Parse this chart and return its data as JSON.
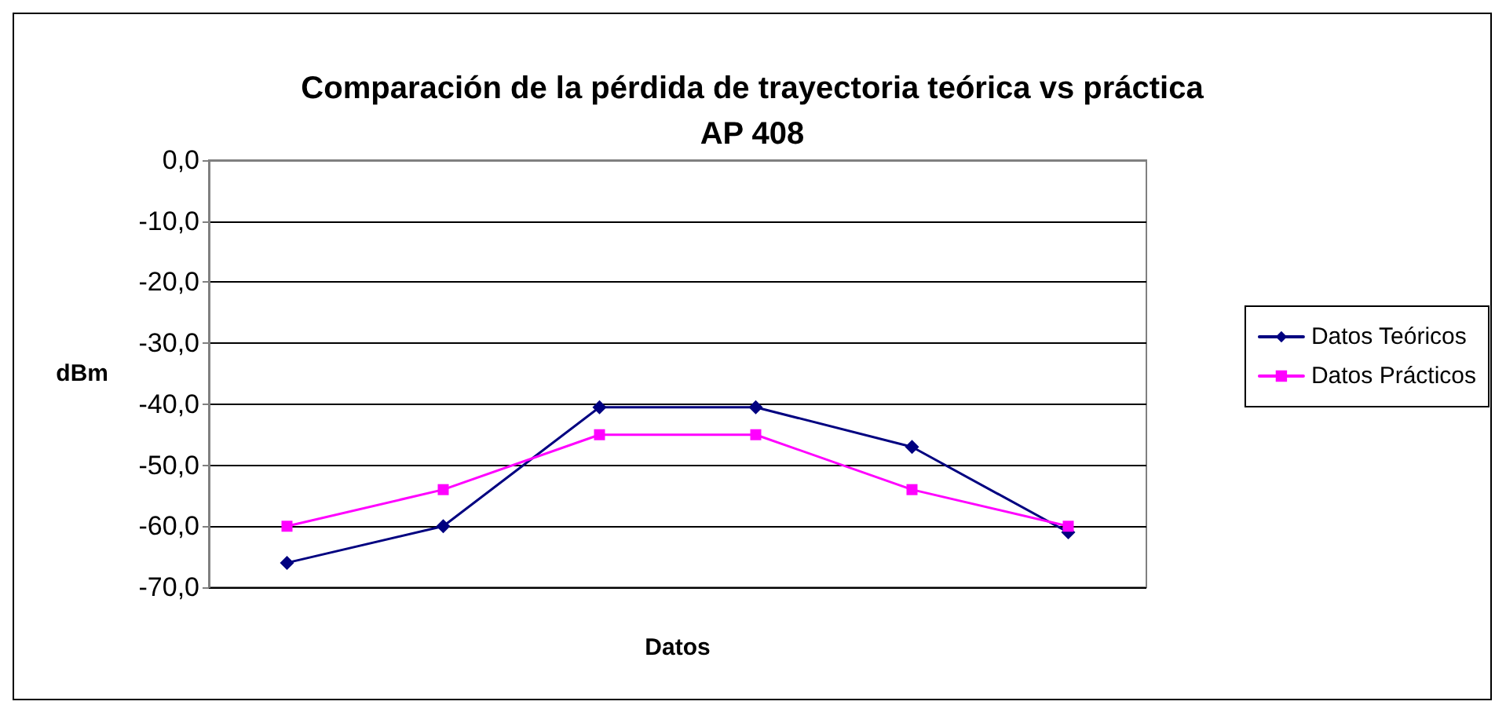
{
  "chart_data": {
    "type": "line",
    "title": "Comparación de la pérdida de trayectoria teórica vs práctica\nAP 408",
    "xlabel": "Datos",
    "ylabel": "dBm",
    "categories": [
      null,
      null,
      null,
      null,
      null,
      null
    ],
    "series": [
      {
        "name": "Datos Teóricos",
        "color": "#000080",
        "marker": "diamond",
        "values": [
          -66,
          -60,
          -40.5,
          -40.5,
          -47,
          -61
        ]
      },
      {
        "name": "Datos Prácticos",
        "color": "#ff00ff",
        "marker": "square",
        "values": [
          -60,
          -54,
          -45,
          -45,
          -54,
          -60
        ]
      }
    ],
    "ylim": [
      -70,
      0
    ],
    "yticks": [
      {
        "value": -70,
        "label": "-70,0"
      },
      {
        "value": -60,
        "label": "-60,0"
      },
      {
        "value": -50,
        "label": "-50,0"
      },
      {
        "value": -40,
        "label": "-40,0"
      },
      {
        "value": -30,
        "label": "-30,0"
      },
      {
        "value": -20,
        "label": "-20,0"
      },
      {
        "value": -10,
        "label": "-10,0"
      },
      {
        "value": 0,
        "label": "0,0"
      }
    ],
    "grid": "y",
    "legend": "right",
    "tick_labels": "y"
  }
}
